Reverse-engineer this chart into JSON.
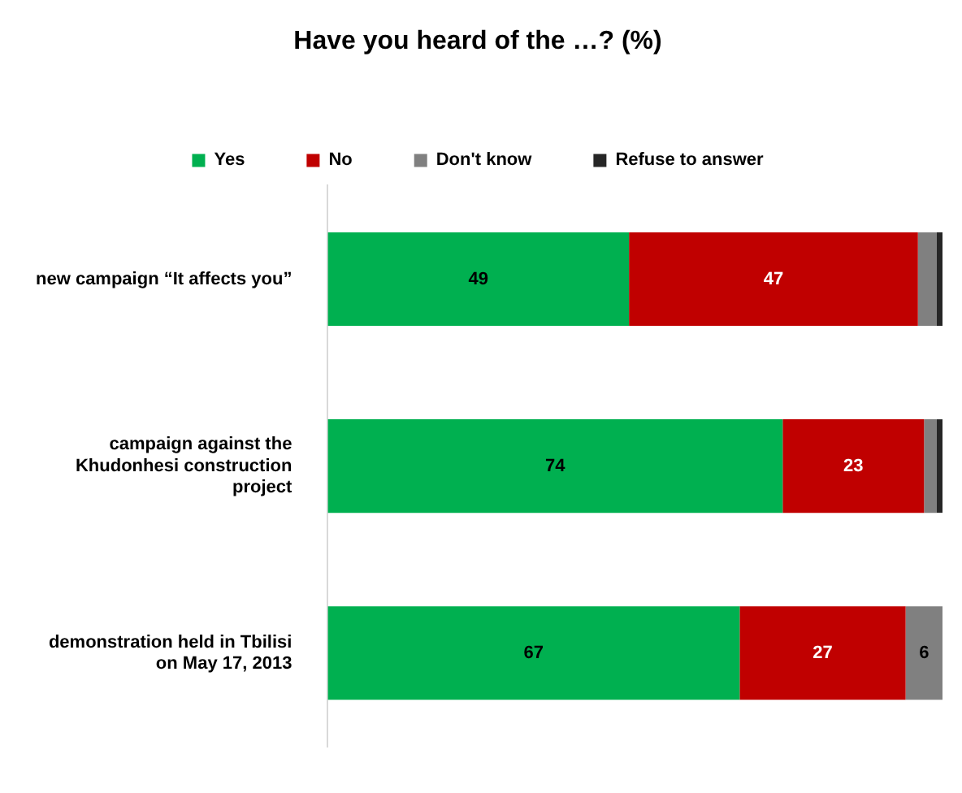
{
  "chart_data": {
    "type": "bar",
    "orientation": "horizontal",
    "stacked": true,
    "title": "Have you heard of the …? (%)",
    "legend": "top",
    "categories": [
      "new campaign “It affects you”",
      "campaign against the Khudonhesi construction project",
      "demonstration held in Tbilisi on May 17, 2013"
    ],
    "series": [
      {
        "name": "Yes",
        "color": "#00b050",
        "values": [
          49,
          74,
          67
        ],
        "value_labels": [
          "49",
          "74",
          "67"
        ]
      },
      {
        "name": "No",
        "color": "#c00000",
        "values": [
          47,
          23,
          27
        ],
        "value_labels": [
          "47",
          "23",
          "27"
        ]
      },
      {
        "name": "Don't know",
        "color": "#808080",
        "values": [
          3,
          2,
          6
        ],
        "value_labels": [
          null,
          null,
          "6"
        ]
      },
      {
        "name": "Refuse to answer",
        "color": "#262626",
        "values": [
          1,
          1,
          0
        ],
        "value_labels": [
          null,
          null,
          null
        ]
      }
    ]
  }
}
